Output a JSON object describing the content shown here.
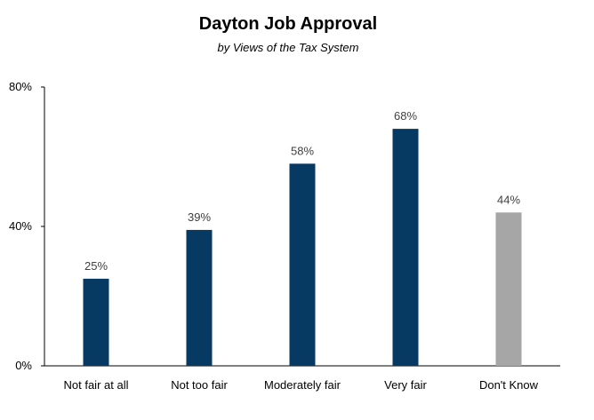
{
  "chart_data": {
    "type": "bar",
    "title": "Dayton Job Approval",
    "subtitle": "by Views of the Tax System",
    "xlabel": "",
    "ylabel": "",
    "categories": [
      "Not fair at all",
      "Not too fair",
      "Moderately fair",
      "Very fair",
      "Don't Know"
    ],
    "values": [
      25,
      39,
      58,
      68,
      44
    ],
    "data_labels": [
      "25%",
      "39%",
      "58%",
      "68%",
      "44%"
    ],
    "bar_colors": [
      "#063a63",
      "#063a63",
      "#063a63",
      "#063a63",
      "#a6a6a6"
    ],
    "ylim": [
      0,
      80
    ],
    "yticks": [
      0,
      40,
      80
    ],
    "ytick_labels": [
      "0%",
      "40%",
      "80%"
    ],
    "grid": false,
    "legend": "none"
  }
}
